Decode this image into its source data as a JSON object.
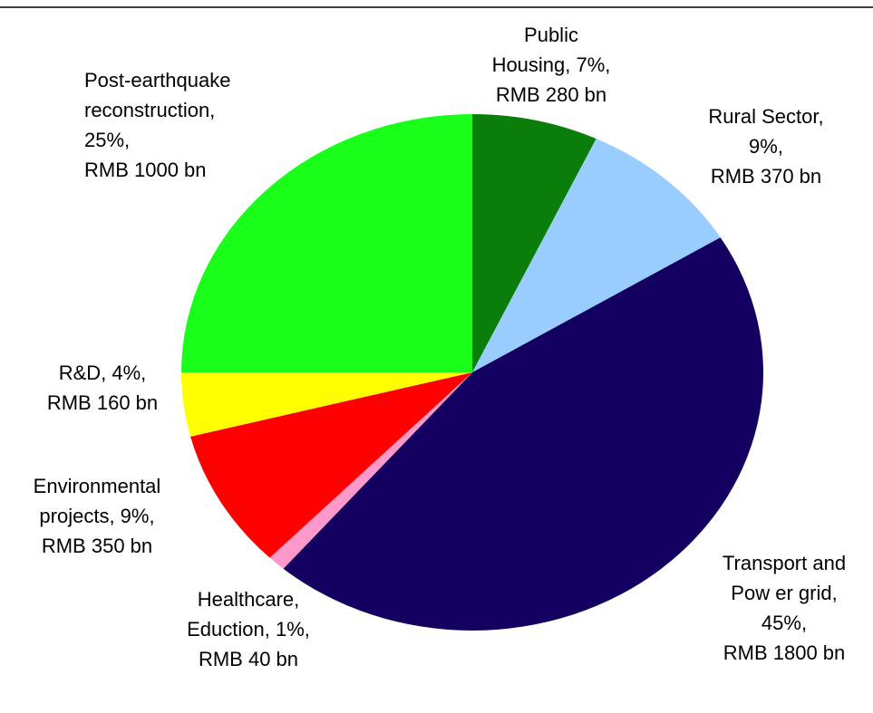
{
  "chart_data": {
    "type": "pie",
    "values": [
      280,
      370,
      1800,
      40,
      350,
      160,
      1000
    ],
    "value_labels": [
      [
        "Public",
        "Housing,  7%,",
        "RMB 280 bn"
      ],
      [
        "Rural Sector,",
        "9%,",
        "RMB 370 bn"
      ],
      [
        "Transport and",
        "Pow er grid,",
        "45%,",
        "RMB 1800 bn"
      ],
      [
        "Healthcare,",
        "Eduction, 1%,",
        "RMB 40 bn"
      ],
      [
        "Environmental",
        "projects,  9%,",
        "RMB 350 bn"
      ],
      [
        "R&D, 4%,",
        "RMB 160 bn"
      ],
      [
        "Post-earthquake",
        "reconstruction,",
        "25%,",
        "RMB 1000 bn"
      ]
    ],
    "colors": [
      "#0a7d0a",
      "#99ccff",
      "#130060",
      "#ff99cc",
      "#ff0000",
      "#ffff00",
      "#1aff1a"
    ]
  }
}
